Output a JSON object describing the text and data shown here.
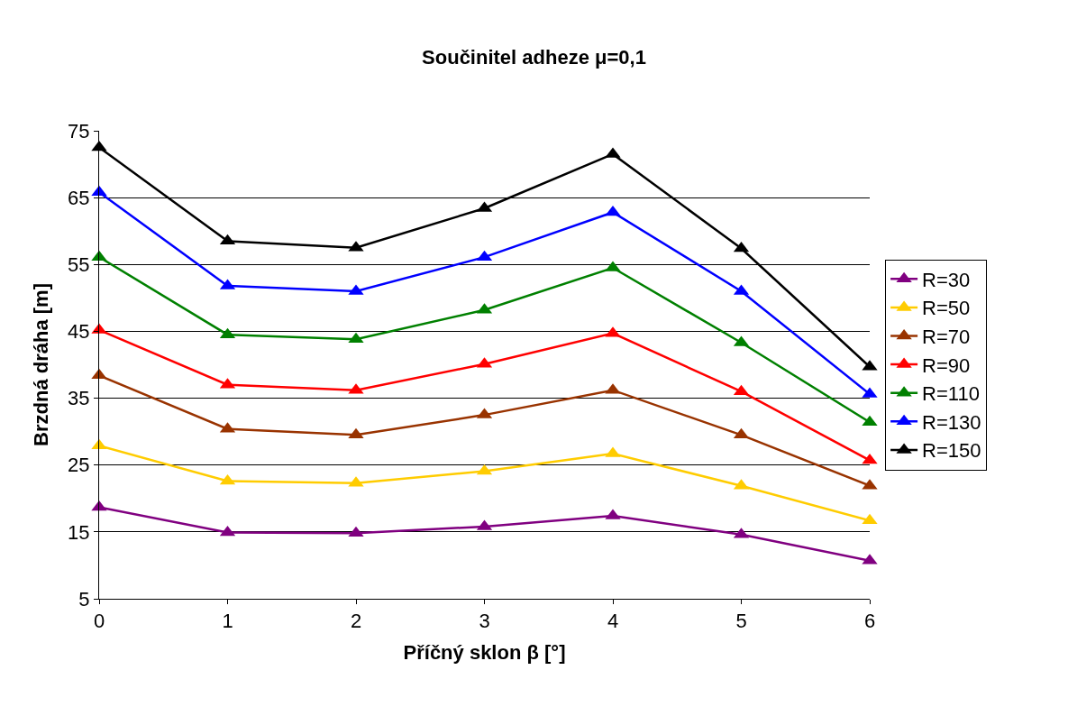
{
  "chart_data": {
    "type": "line",
    "title": "Součinitel adheze μ=0,1",
    "xlabel": "Příčný sklon β [°]",
    "ylabel": "Brzdná dráha [m]",
    "x": [
      0,
      1,
      2,
      3,
      4,
      5,
      6
    ],
    "xlim": [
      0,
      6
    ],
    "xticks": [
      0,
      1,
      2,
      3,
      4,
      5,
      6
    ],
    "ylim": [
      5,
      75
    ],
    "yticks": [
      5,
      15,
      25,
      35,
      45,
      55,
      65,
      75
    ],
    "grid": "y",
    "legend": "right",
    "marker": "triangle",
    "line_style": "solid",
    "series": [
      {
        "name": "R=30",
        "color": "#800080",
        "values": [
          18.7,
          14.9,
          14.8,
          15.8,
          17.4,
          14.6,
          10.7
        ]
      },
      {
        "name": "R=50",
        "color": "#ffcc00",
        "values": [
          27.9,
          22.6,
          22.3,
          24.1,
          26.7,
          21.9,
          16.7
        ]
      },
      {
        "name": "R=70",
        "color": "#993300",
        "values": [
          38.4,
          30.4,
          29.5,
          32.5,
          36.2,
          29.5,
          21.9
        ]
      },
      {
        "name": "R=90",
        "color": "#ff0000",
        "values": [
          45.2,
          37.0,
          36.2,
          40.1,
          44.7,
          36.0,
          25.7
        ]
      },
      {
        "name": "R=110",
        "color": "#008000",
        "values": [
          56.1,
          44.5,
          43.8,
          48.2,
          54.5,
          43.3,
          31.4
        ]
      },
      {
        "name": "R=130",
        "color": "#0000ff",
        "values": [
          65.8,
          51.8,
          51.0,
          56.1,
          62.8,
          51.0,
          35.6
        ]
      },
      {
        "name": "R=150",
        "color": "#000000",
        "values": [
          72.5,
          58.5,
          57.5,
          63.4,
          71.5,
          57.4,
          39.7
        ]
      }
    ]
  }
}
